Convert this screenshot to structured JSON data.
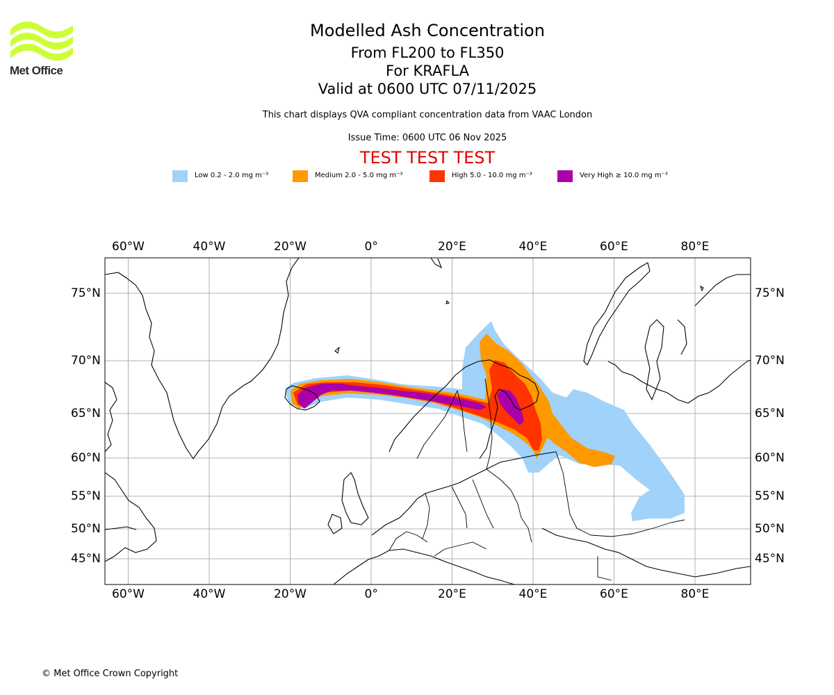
{
  "logo": {
    "text": "Met Office",
    "color": "#ccff33"
  },
  "header": {
    "title": "Modelled Ash Concentration",
    "flight_levels": "From FL200 to FL350",
    "volcano": "For KRAFLA",
    "valid": "Valid at 0600 UTC 07/11/2025",
    "description": "This chart displays QVA compliant concentration data from VAAC London",
    "issue_time": "Issue Time: 0600 UTC 06 Nov 2025",
    "test_banner": "TEST TEST TEST"
  },
  "legend": [
    {
      "label": "Low 0.2 - 2.0 mg m⁻³",
      "color": "#a0d2fa"
    },
    {
      "label": "Medium 2.0 - 5.0 mg m⁻³",
      "color": "#ff9900"
    },
    {
      "label": "High 5.0 - 10.0 mg m⁻³",
      "color": "#ff3300"
    },
    {
      "label": "Very High  ≥  10.0 mg m⁻³",
      "color": "#aa00aa"
    }
  ],
  "map": {
    "lon_labels": [
      "60°W",
      "40°W",
      "20°W",
      "0°",
      "20°E",
      "40°E",
      "60°E",
      "80°E"
    ],
    "lat_labels": [
      "75°N",
      "70°N",
      "65°N",
      "60°N",
      "55°N",
      "50°N",
      "45°N"
    ],
    "lon_values": [
      -60,
      -40,
      -20,
      0,
      20,
      40,
      60,
      80
    ],
    "lat_values": [
      75,
      70,
      65,
      60,
      55,
      50,
      45
    ],
    "grid": true
  },
  "footer": {
    "copyright": "© Met Office Crown Copyright"
  }
}
